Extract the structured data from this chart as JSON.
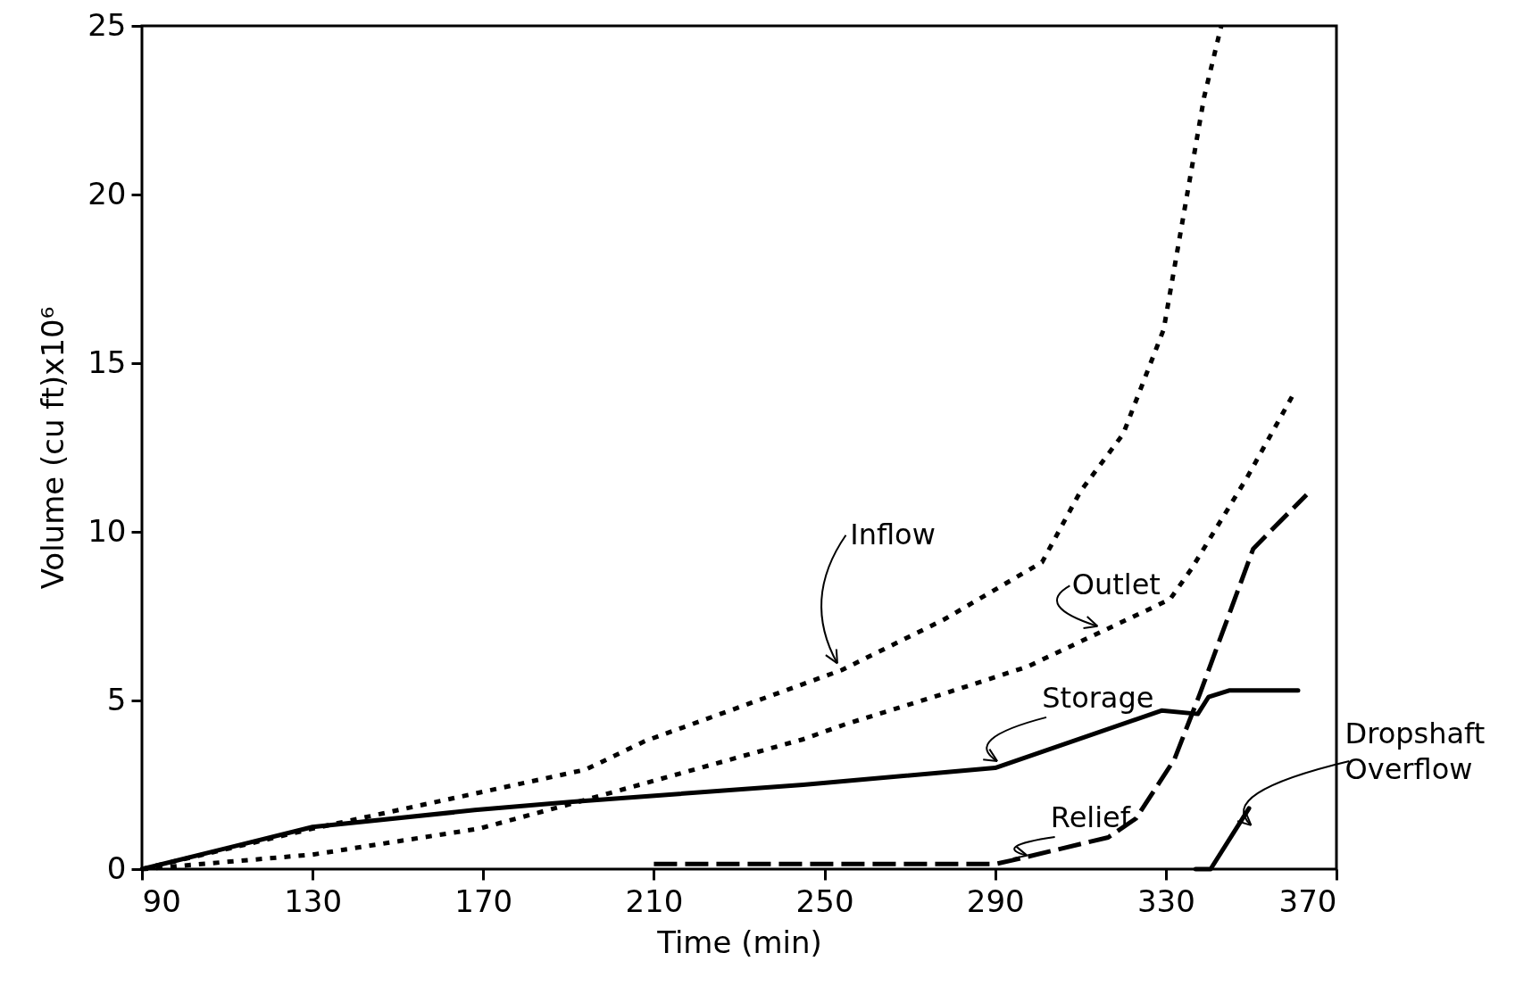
{
  "chart_data": {
    "type": "line",
    "xlabel": "Time (min)",
    "ylabel": "Volume (cu ft)x10⁶",
    "xlim": [
      90,
      370
    ],
    "ylim": [
      0,
      25
    ],
    "xticks": [
      90,
      130,
      170,
      210,
      250,
      290,
      330,
      370
    ],
    "yticks": [
      0,
      5,
      10,
      15,
      20,
      25
    ],
    "grid": false,
    "marker": "none",
    "series": [
      {
        "name": "Inflow",
        "color": "#000000",
        "line_style": "dotted",
        "x": [
          90,
          130,
          194,
          208,
          230,
          254,
          278,
          301,
          310,
          320,
          329.5,
          335,
          339,
          343
        ],
        "values": [
          0,
          1.2,
          2.95,
          3.8,
          4.8,
          5.9,
          7.4,
          9.1,
          11.2,
          12.9,
          16.0,
          20.0,
          22.9,
          25
        ]
      },
      {
        "name": "Outlet",
        "color": "#000000",
        "line_style": "dotted",
        "x": [
          90,
          130,
          169,
          191,
          245,
          255,
          278,
          297.5,
          331,
          336,
          349,
          360
        ],
        "values": [
          0,
          0.43,
          1.2,
          1.95,
          3.85,
          4.3,
          5.2,
          6.0,
          8.0,
          8.9,
          11.6,
          14.1
        ]
      },
      {
        "name": "Storage",
        "color": "#000000",
        "line_style": "solid",
        "x": [
          90,
          130,
          168,
          191,
          245,
          290,
          329,
          337.5,
          340,
          345,
          361
        ],
        "values": [
          0,
          1.25,
          1.75,
          2.0,
          2.5,
          3.0,
          4.7,
          4.6,
          5.1,
          5.3,
          5.3
        ]
      },
      {
        "name": "Relief",
        "color": "#000000",
        "line_style": "dashed",
        "x": [
          210,
          290,
          294,
          316.5,
          323,
          332,
          338,
          350.5,
          363
        ],
        "values": [
          0.15,
          0.15,
          0.26,
          0.94,
          1.5,
          3.25,
          5.2,
          9.5,
          11.1
        ]
      },
      {
        "name": "Dropshaft Overflow",
        "color": "#000000",
        "line_style": "solid",
        "x": [
          337,
          340.5,
          349.5
        ],
        "values": [
          0,
          0,
          1.8
        ]
      }
    ]
  }
}
